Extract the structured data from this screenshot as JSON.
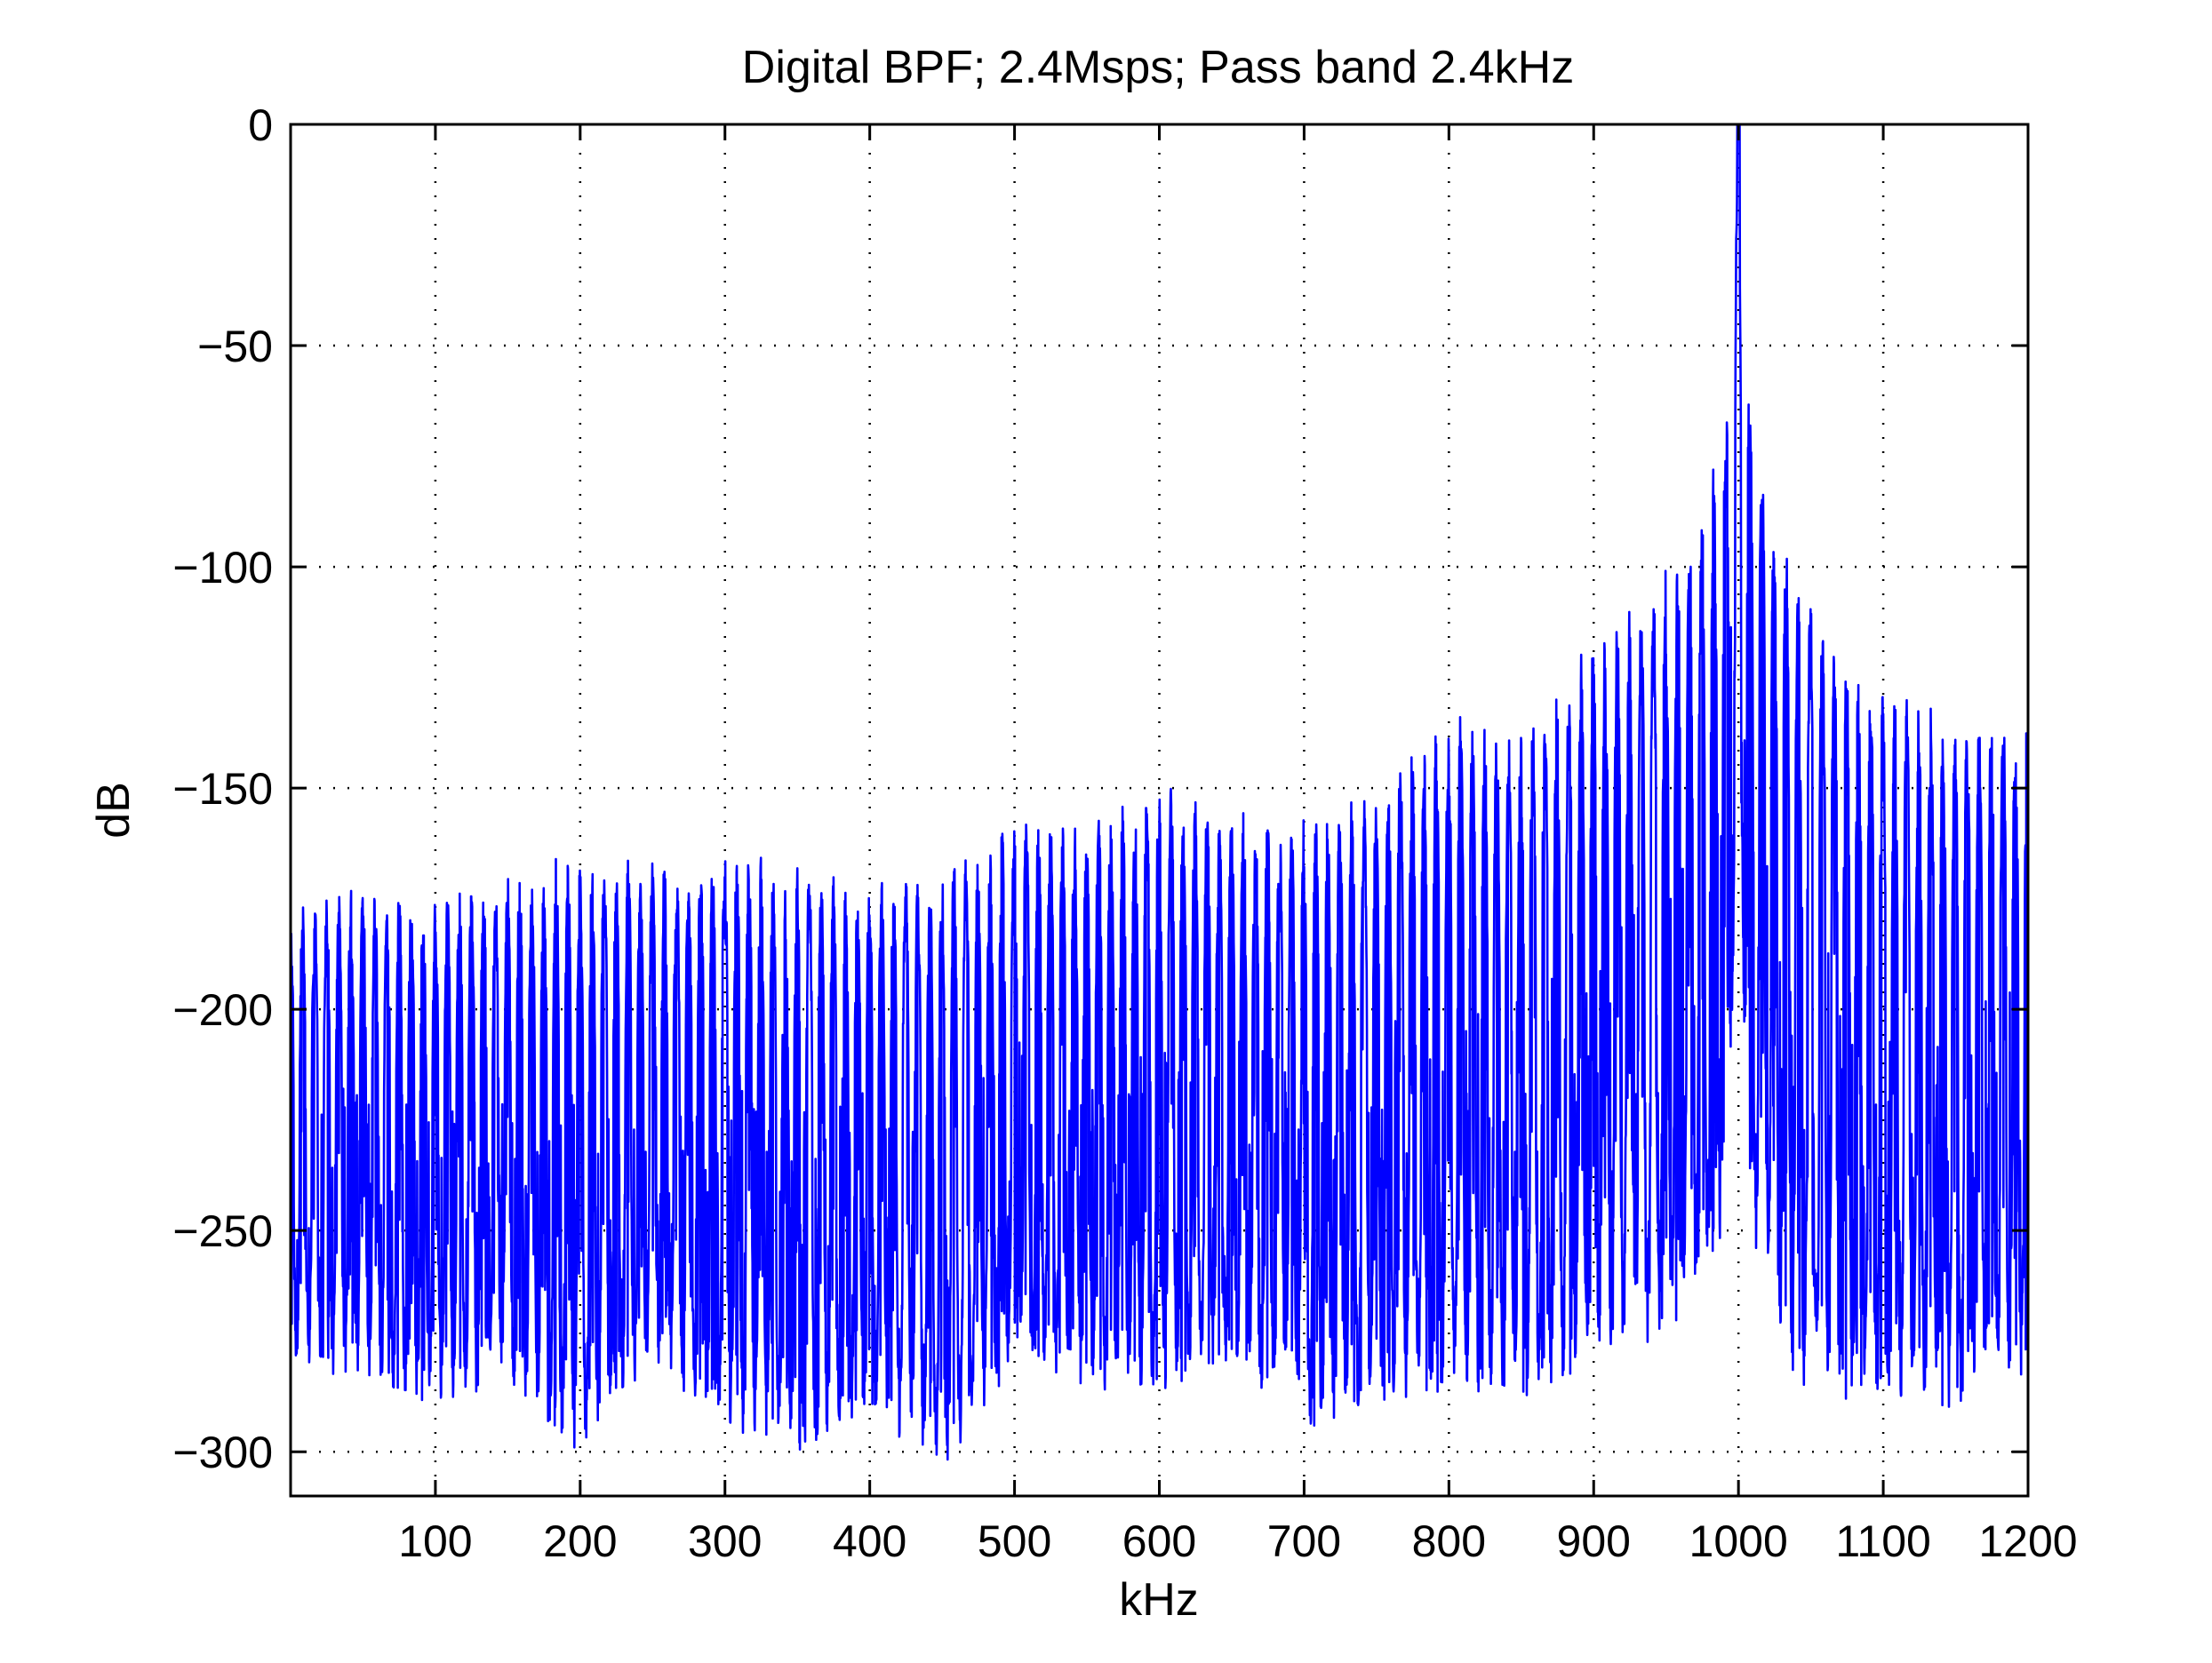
{
  "chart_data": {
    "type": "line",
    "title": "Digital BPF; 2.4Msps; Pass band 2.4kHz",
    "xlabel": "kHz",
    "ylabel": "dB",
    "xlim": [
      0,
      1200
    ],
    "ylim": [
      -310,
      0
    ],
    "xticks": [
      100,
      200,
      300,
      400,
      500,
      600,
      700,
      800,
      900,
      1000,
      1100,
      1200
    ],
    "xtick_labels": [
      "100",
      "200",
      "300",
      "400",
      "500",
      "600",
      "700",
      "800",
      "900",
      "1000",
      "1100",
      "1200"
    ],
    "yticks": [
      0,
      -50,
      -100,
      -150,
      -200,
      -250,
      -300
    ],
    "ytick_labels": [
      "0",
      "−50",
      "−100",
      "−150",
      "−200",
      "−250",
      "−300"
    ],
    "grid": true,
    "grid_style": "dotted",
    "series": [
      {
        "color": "#0000ff",
        "envelope_x": [
          0,
          50,
          100,
          150,
          200,
          250,
          300,
          350,
          400,
          450,
          500,
          550,
          600,
          650,
          700,
          750,
          800,
          850,
          900,
          940,
          960,
          975,
          985,
          992,
          997,
          1000,
          1003,
          1008,
          1015,
          1025,
          1040,
          1060,
          1080,
          1100,
          1150,
          1200
        ],
        "peak_db": [
          -177,
          -172,
          -175,
          -170,
          -163,
          -167,
          -164,
          -167,
          -170,
          -168,
          -157,
          -158,
          -148,
          -155,
          -156,
          -148,
          -132,
          -138,
          -115,
          -105,
          -96,
          -86,
          -68,
          -57,
          -20,
          0,
          -20,
          -57,
          -68,
          -86,
          -100,
          -112,
          -122,
          -128,
          -133,
          -132
        ],
        "trough_db": [
          -280,
          -285,
          -290,
          -285,
          -302,
          -280,
          -295,
          -300,
          -292,
          -305,
          -280,
          -285,
          -290,
          -280,
          -295,
          -290,
          -286,
          -288,
          -280,
          -275,
          -270,
          -260,
          -255,
          -250,
          -200,
          -120,
          -200,
          -250,
          -260,
          -270,
          -285,
          -288,
          -290,
          -290,
          -290,
          -283
        ]
      }
    ]
  }
}
